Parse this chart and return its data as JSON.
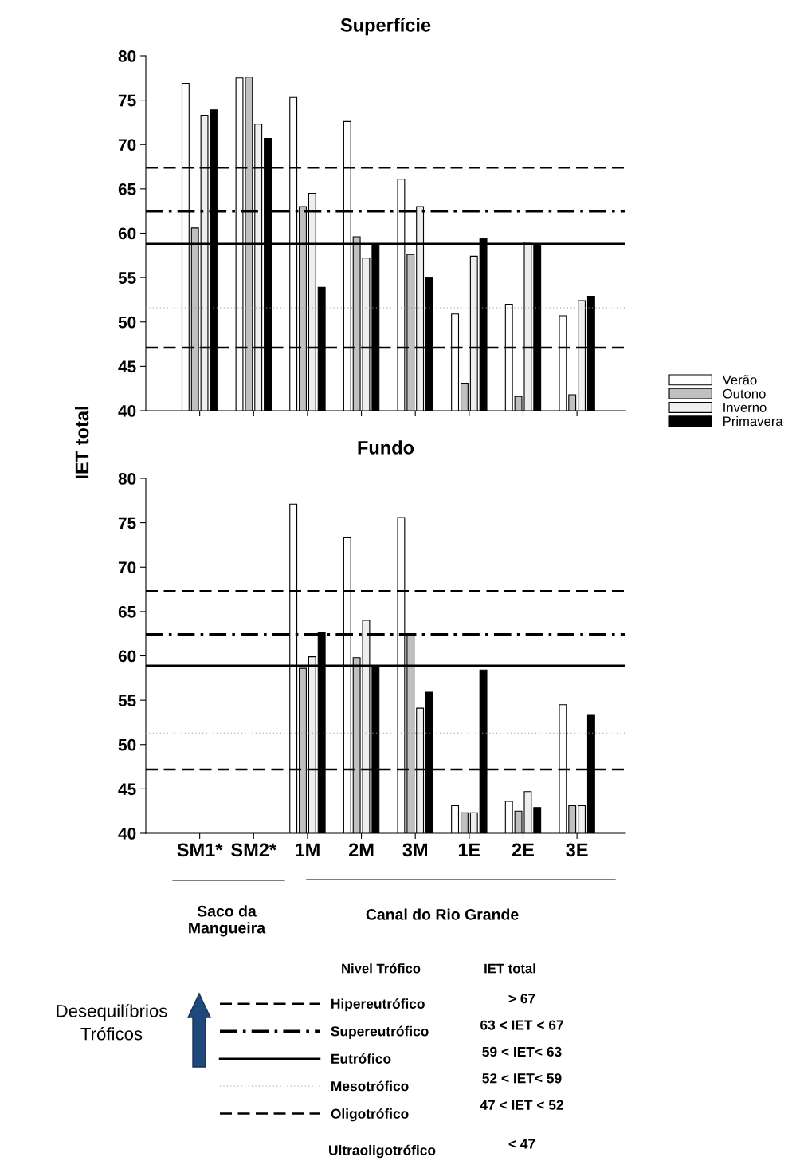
{
  "chart_data": [
    {
      "type": "bar",
      "title": "Superfície",
      "ylabel": "IET total",
      "categories": [
        null,
        null,
        null,
        null,
        null,
        null,
        null,
        null
      ],
      "series": [
        {
          "name": "Verão",
          "color": "#ffffff",
          "values": [
            76.9,
            77.5,
            75.3,
            72.6,
            66.1,
            50.9,
            52.0,
            50.7
          ]
        },
        {
          "name": "Outono",
          "color": "#c0c0c0",
          "values": [
            60.6,
            77.6,
            63.0,
            59.6,
            57.6,
            43.1,
            41.6,
            41.8
          ]
        },
        {
          "name": "Inverno",
          "color": "#eeeeee",
          "values": [
            73.3,
            72.3,
            64.5,
            57.2,
            63.0,
            57.4,
            59.0,
            52.4
          ]
        },
        {
          "name": "Primavera",
          "color": "#000000",
          "values": [
            73.9,
            70.7,
            53.9,
            58.8,
            55.0,
            59.4,
            58.8,
            52.9
          ]
        }
      ],
      "ylim": [
        40,
        80
      ],
      "yticks": [
        40,
        45,
        50,
        55,
        60,
        65,
        70,
        75,
        80
      ],
      "tick_labels": "y",
      "legend": "right",
      "grid": false,
      "ref_lines": [
        {
          "axis": "y",
          "value": 67.4,
          "color": "#000000",
          "line_style": "dashed"
        },
        {
          "axis": "y",
          "value": 62.5,
          "color": "#000000",
          "line_style": "dashdot"
        },
        {
          "axis": "y",
          "value": 58.8,
          "color": "#000000",
          "line_style": "solid"
        },
        {
          "axis": "y",
          "value": 51.6,
          "color": "#999999",
          "line_style": "dotted"
        },
        {
          "axis": "y",
          "value": 47.1,
          "color": "#000000",
          "line_style": "dashed"
        }
      ]
    },
    {
      "type": "bar",
      "title": "Fundo",
      "categories": [
        "SM1*",
        "SM2*",
        "1M",
        "2M",
        "3M",
        "1E",
        "2E",
        "3E"
      ],
      "series": [
        {
          "color": "#ffffff",
          "values": [
            null,
            null,
            77.1,
            73.3,
            75.6,
            43.1,
            43.6,
            54.5
          ]
        },
        {
          "color": "#c0c0c0",
          "values": [
            null,
            null,
            58.6,
            59.8,
            62.3,
            42.3,
            42.5,
            43.1
          ]
        },
        {
          "color": "#eeeeee",
          "values": [
            null,
            null,
            59.9,
            64.0,
            54.1,
            42.3,
            44.7,
            43.1
          ]
        },
        {
          "color": "#000000",
          "values": [
            null,
            null,
            62.6,
            58.9,
            55.9,
            58.4,
            42.9,
            53.3
          ]
        }
      ],
      "ylim": [
        40,
        80
      ],
      "yticks": [
        40,
        45,
        50,
        55,
        60,
        65,
        70,
        75,
        80
      ],
      "grid": false,
      "ref_lines": [
        {
          "axis": "y",
          "value": 67.3,
          "color": "#000000",
          "line_style": "dashed"
        },
        {
          "axis": "y",
          "value": 62.4,
          "color": "#000000",
          "line_style": "dashdot"
        },
        {
          "axis": "y",
          "value": 58.9,
          "color": "#000000",
          "line_style": "solid"
        },
        {
          "axis": "y",
          "value": 51.3,
          "color": "#999999",
          "line_style": "dotted"
        },
        {
          "axis": "y",
          "value": 47.2,
          "color": "#000000",
          "line_style": "dashed"
        }
      ],
      "annotations": [
        "Saco da\nMangueira",
        "Canal do Rio Grande",
        "Nivel Trófico",
        "IET total",
        "> 67",
        "63 < IET < 67",
        "59 < IET< 63",
        "52 < IET< 59",
        "47 < IET < 52",
        "Ultraoligotrófico",
        "< 47",
        "Desequilíbrios\nTróficos",
        "Hipereutrófico",
        "Supereutrófico",
        "Eutrófico",
        "Mesotrófico",
        "Oligotrófico"
      ]
    }
  ]
}
